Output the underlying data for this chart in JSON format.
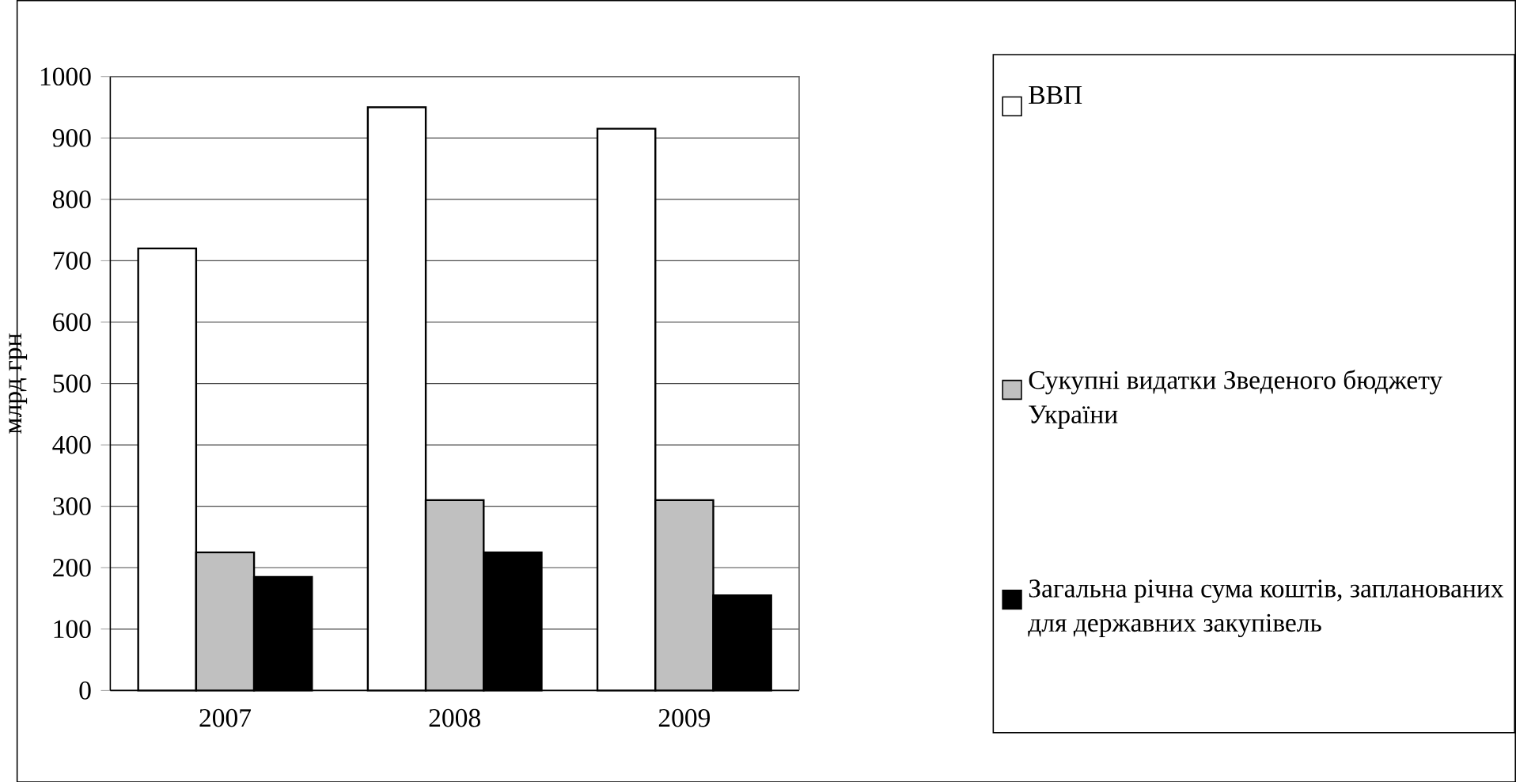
{
  "chart_data": {
    "type": "bar",
    "ylabel": "млрд грн",
    "categories": [
      "2007",
      "2008",
      "2009"
    ],
    "series": [
      {
        "name": "ВВП",
        "color": "#ffffff",
        "values": [
          720,
          950,
          915
        ]
      },
      {
        "name": "Сукупні видатки Зведеного бюджету України",
        "color": "#c0c0c0",
        "values": [
          225,
          310,
          310
        ]
      },
      {
        "name": "Загальна річна сума коштів, запланованих для державних закупівель",
        "color": "#000000",
        "values": [
          185,
          225,
          155
        ]
      }
    ],
    "ylim": [
      0,
      1000
    ],
    "yticks": [
      0,
      100,
      200,
      300,
      400,
      500,
      600,
      700,
      800,
      900,
      1000
    ],
    "grid": "y",
    "legend": "right"
  }
}
